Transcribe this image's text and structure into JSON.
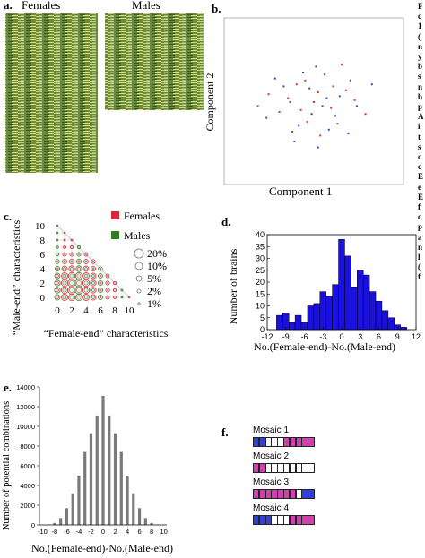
{
  "panels": {
    "a": {
      "label": "a.",
      "title_females": "Females",
      "title_males": "Males"
    },
    "b": {
      "label": "b."
    },
    "c": {
      "label": "c.",
      "legend": {
        "sizes": [
          "20%",
          "10%",
          "5%",
          "2%",
          "1%"
        ]
      }
    },
    "d": {
      "label": "d."
    },
    "e": {
      "label": "e."
    },
    "f": {
      "label": "f."
    }
  },
  "side_text": [
    "F",
    "c",
    "1",
    "(",
    "n",
    "y",
    "b",
    "s",
    "n",
    "b",
    "p",
    "A",
    "i",
    "t",
    "s",
    "c",
    "c",
    "E",
    "e",
    "E",
    "f",
    "c",
    "p",
    "a",
    "n",
    "l",
    "(",
    "f"
  ],
  "colors": {
    "female": "#d5283a",
    "male": "#2f7d1f",
    "bar_blue": "#1a10e0",
    "bar_gray": "#7a7a7a",
    "scatter_red": "#d43045",
    "scatter_blue": "#3a42c8",
    "mosaic_pink": "#d040b0",
    "mosaic_blue": "#3040d8"
  },
  "chart_data": [
    {
      "id": "b",
      "type": "scatter",
      "xlabel": "Component 1",
      "ylabel": "Component 2",
      "series": [
        {
          "values": [
            [
              0.2,
              0.5
            ],
            [
              -0.4,
              1.1
            ],
            [
              0.8,
              -0.3
            ],
            [
              -1.2,
              0.2
            ],
            [
              1.5,
              0.6
            ],
            [
              -0.3,
              -1.0
            ],
            [
              0.5,
              1.4
            ],
            [
              -1.6,
              -0.5
            ],
            [
              1.1,
              -1.1
            ],
            [
              0.0,
              0.0
            ],
            [
              -0.8,
              0.9
            ],
            [
              1.9,
              0.1
            ],
            [
              -2.1,
              0.4
            ],
            [
              0.3,
              -1.7
            ],
            [
              0.9,
              0.8
            ],
            [
              -0.6,
              -0.4
            ],
            [
              1.3,
              1.9
            ],
            [
              -1.0,
              -1.5
            ],
            [
              2.4,
              -0.6
            ],
            [
              -2.6,
              -0.2
            ]
          ]
        },
        {
          "values": [
            [
              0.6,
              0.2
            ],
            [
              -0.2,
              0.7
            ],
            [
              1.0,
              -0.7
            ],
            [
              -1.4,
              0.8
            ],
            [
              0.4,
              -0.2
            ],
            [
              -0.7,
              -1.2
            ],
            [
              1.7,
              1.1
            ],
            [
              -1.1,
              0.0
            ],
            [
              0.1,
              1.8
            ],
            [
              -0.1,
              -0.6
            ],
            [
              2.0,
              -0.2
            ],
            [
              -1.8,
              1.2
            ],
            [
              0.7,
              -1.4
            ],
            [
              1.2,
              0.3
            ],
            [
              -0.5,
              1.5
            ],
            [
              -2.2,
              -0.8
            ],
            [
              2.7,
              0.9
            ],
            [
              -0.9,
              -2.0
            ],
            [
              0.2,
              -2.3
            ],
            [
              1.6,
              -1.6
            ]
          ]
        }
      ]
    },
    {
      "id": "c",
      "type": "scatter",
      "xlabel": "“Female-end” characteristics",
      "ylabel": "“Male-end” characteristics",
      "legend": [
        "Females",
        "Males"
      ],
      "x_ticks": [
        0,
        2,
        4,
        6,
        8,
        10
      ],
      "y_ticks": [
        0,
        2,
        4,
        6,
        8,
        10
      ],
      "xlim": [
        0,
        10
      ],
      "ylim": [
        0,
        10
      ]
    },
    {
      "id": "d",
      "type": "bar",
      "ylabel": "Number of brains",
      "xlabel": "No.(Female-end)-No.(Male-end)",
      "ylim": [
        0,
        40
      ],
      "xlim": [
        -12,
        12
      ],
      "y_ticks": [
        0,
        5,
        10,
        15,
        20,
        25,
        30,
        35,
        40
      ],
      "x_ticks": [
        -12,
        -9,
        -6,
        -3,
        0,
        3,
        6,
        9,
        12
      ],
      "categories": [
        -10,
        -9,
        -8,
        -7,
        -6,
        -5,
        -4,
        -3,
        -2,
        -1,
        0,
        1,
        2,
        3,
        4,
        5,
        6,
        7,
        8,
        9,
        10
      ],
      "values": [
        6,
        7,
        3,
        6,
        3,
        10,
        11,
        16,
        14,
        19,
        38,
        31,
        18,
        25,
        23,
        16,
        12,
        8,
        5,
        2,
        1
      ]
    },
    {
      "id": "e",
      "type": "bar",
      "ylabel": "Number of potential combinations",
      "xlabel": "No.(Female-end)-No.(Male-end)",
      "ylim": [
        0,
        14000
      ],
      "y_ticks": [
        0,
        2000,
        4000,
        6000,
        8000,
        10000,
        12000,
        14000
      ],
      "categories": [
        -10,
        -9,
        -8,
        -7,
        -6,
        -5,
        -4,
        -3,
        -2,
        -1,
        0,
        1,
        2,
        3,
        4,
        5,
        6,
        7,
        8,
        9,
        10
      ],
      "values": [
        5,
        40,
        200,
        700,
        1700,
        3200,
        5000,
        7400,
        9300,
        11100,
        13100,
        11100,
        9300,
        7400,
        5000,
        3200,
        1700,
        700,
        200,
        40,
        5
      ]
    }
  ],
  "mosaics": [
    {
      "name": "Mosaic 1",
      "cells": [
        "b",
        "b",
        "w",
        "w",
        "w",
        "p",
        "p",
        "p",
        "p",
        "p"
      ]
    },
    {
      "name": "Mosaic 2",
      "cells": [
        "p",
        "p",
        "w",
        "w",
        "w",
        "w",
        "w",
        "w",
        "w",
        "w"
      ]
    },
    {
      "name": "Mosaic 3",
      "cells": [
        "p",
        "p",
        "p",
        "p",
        "p",
        "p",
        "p",
        "w",
        "b",
        "b"
      ]
    },
    {
      "name": "Mosaic 4",
      "cells": [
        "b",
        "b",
        "b",
        "w",
        "w",
        "w",
        "p",
        "p",
        "p",
        "p"
      ]
    }
  ]
}
